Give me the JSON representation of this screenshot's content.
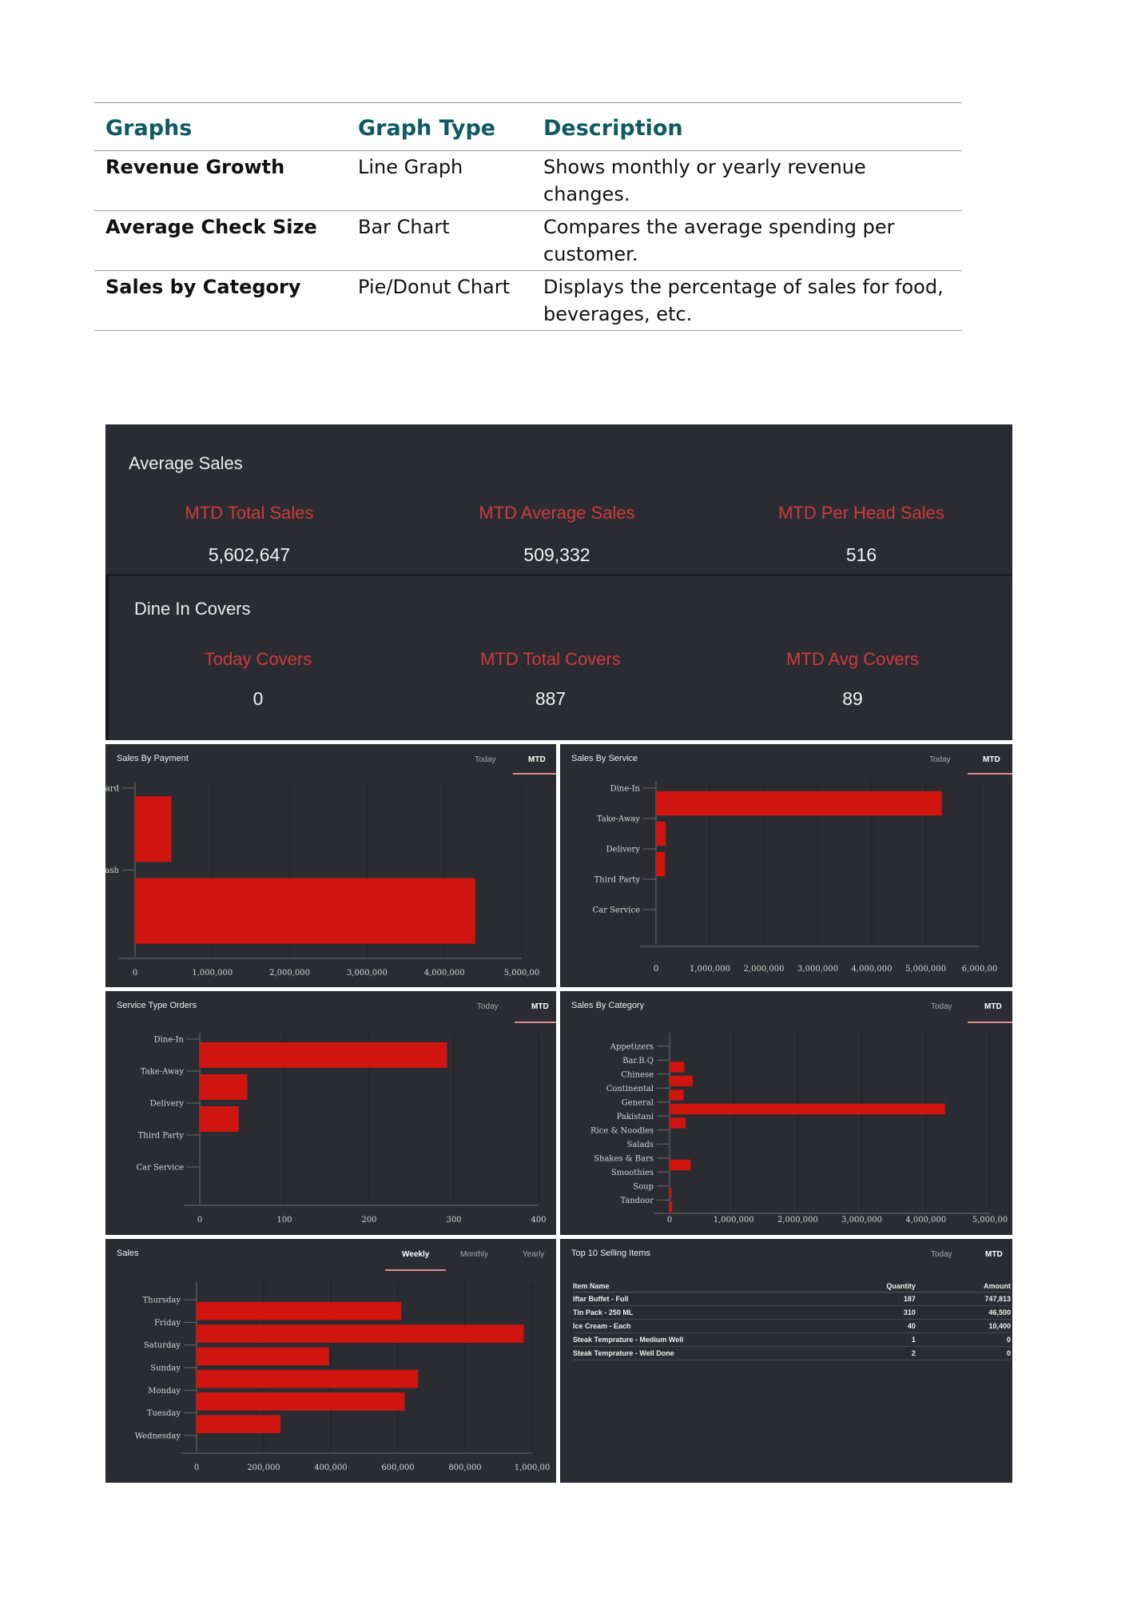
{
  "doc_table": {
    "headers": [
      "Graphs",
      "Graph Type",
      "Description"
    ],
    "rows": [
      [
        "Revenue Growth",
        "Line Graph",
        "Shows monthly or yearly revenue changes."
      ],
      [
        "Average Check Size",
        "Bar Chart",
        "Compares the average spending per customer."
      ],
      [
        "Sales by Category",
        "Pie/Donut Chart",
        "Displays the percentage of sales for food, beverages, etc."
      ]
    ]
  },
  "avg_sales": {
    "title": "Average Sales",
    "items": [
      {
        "label": "MTD Total Sales",
        "value": "5,602,647"
      },
      {
        "label": "MTD Average Sales",
        "value": "509,332"
      },
      {
        "label": "MTD Per Head Sales",
        "value": "516"
      }
    ]
  },
  "dine_in": {
    "title": "Dine In Covers",
    "items": [
      {
        "label": "Today Covers",
        "value": "0"
      },
      {
        "label": "MTD Total Covers",
        "value": "887"
      },
      {
        "label": "MTD Avg Covers",
        "value": "89"
      }
    ]
  },
  "colors": {
    "bar": "#d0140f",
    "panel": "#2b2c31",
    "accent_label": "#cf3a40",
    "tab_underline": "#d98a95"
  },
  "panels": {
    "payment": {
      "title": "Sales By Payment",
      "tabs": [
        "Today",
        "MTD"
      ],
      "active": 1
    },
    "service": {
      "title": "Sales By Service",
      "tabs": [
        "Today",
        "MTD"
      ],
      "active": 1
    },
    "orders": {
      "title": "Service Type Orders",
      "tabs": [
        "Today",
        "MTD"
      ],
      "active": 1
    },
    "category": {
      "title": "Sales By Category",
      "tabs": [
        "Today",
        "MTD"
      ],
      "active": 1
    },
    "sales": {
      "title": "Sales",
      "tabs": [
        "Weekly",
        "Monthly",
        "Yearly"
      ],
      "active": 0
    },
    "top10": {
      "title": "Top 10 Selling Items",
      "tabs": [
        "Today",
        "MTD"
      ],
      "active": 1
    }
  },
  "chart_data": [
    {
      "id": "payment",
      "type": "bar",
      "orientation": "horizontal",
      "categories": [
        "Card",
        "Cash"
      ],
      "values": [
        470000,
        4400000
      ],
      "xlim": [
        0,
        5000000
      ],
      "xticks": [
        "0",
        "1,000,000",
        "2,000,000",
        "3,000,000",
        "4,000,000",
        "5,000,00"
      ]
    },
    {
      "id": "service",
      "type": "bar",
      "orientation": "horizontal",
      "categories": [
        "Dine-In",
        "Take-Away",
        "Delivery",
        "Third Party",
        "Car Service"
      ],
      "values": [
        5300000,
        180000,
        170000,
        0,
        0
      ],
      "xlim": [
        0,
        6000000
      ],
      "xticks": [
        "0",
        "1,000,000",
        "2,000,000",
        "3,000,000",
        "4,000,000",
        "5,000,000",
        "6,000,00"
      ]
    },
    {
      "id": "orders",
      "type": "bar",
      "orientation": "horizontal",
      "categories": [
        "Dine-In",
        "Take-Away",
        "Delivery",
        "Third Party",
        "Car Service"
      ],
      "values": [
        292,
        56,
        46,
        0,
        0
      ],
      "xlim": [
        0,
        400
      ],
      "xticks": [
        "0",
        "100",
        "200",
        "300",
        "400"
      ]
    },
    {
      "id": "category",
      "type": "bar",
      "orientation": "horizontal",
      "categories": [
        "Appetizers",
        "Bar.B.Q",
        "Chinese",
        "Continental",
        "General",
        "Pakistani",
        "Rice & Noodles",
        "Salads",
        "Shakes & Bars",
        "Smoothies",
        "Soup",
        "Tandoor"
      ],
      "values": [
        0,
        230000,
        360000,
        220000,
        4300000,
        250000,
        0,
        0,
        330000,
        0,
        30000,
        40000
      ],
      "xlim": [
        0,
        5000000
      ],
      "xticks": [
        "0",
        "1,000,000",
        "2,000,000",
        "3,000,000",
        "4,000,000",
        "5,000,00"
      ]
    },
    {
      "id": "sales",
      "type": "bar",
      "orientation": "horizontal",
      "categories": [
        "Thursday",
        "Friday",
        "Saturday",
        "Sunday",
        "Monday",
        "Tuesday",
        "Wednesday"
      ],
      "values": [
        610000,
        975000,
        395000,
        660000,
        620000,
        250000,
        0
      ],
      "xlim": [
        0,
        1000000
      ],
      "xticks": [
        "0",
        "200,000",
        "400,000",
        "600,000",
        "800,000",
        "1,000,00"
      ]
    },
    {
      "id": "top10",
      "type": "table",
      "columns": [
        "Item Name",
        "Quantity",
        "Amount"
      ],
      "rows": [
        [
          "Iftar Buffet - Full",
          "187",
          "747,813"
        ],
        [
          "Tin Pack - 250 ML",
          "310",
          "46,500"
        ],
        [
          "Ice Cream - Each",
          "40",
          "10,400"
        ],
        [
          "Steak Temprature - Medium Well",
          "1",
          "0"
        ],
        [
          "Steak Temprature - Well Done",
          "2",
          "0"
        ]
      ]
    }
  ]
}
